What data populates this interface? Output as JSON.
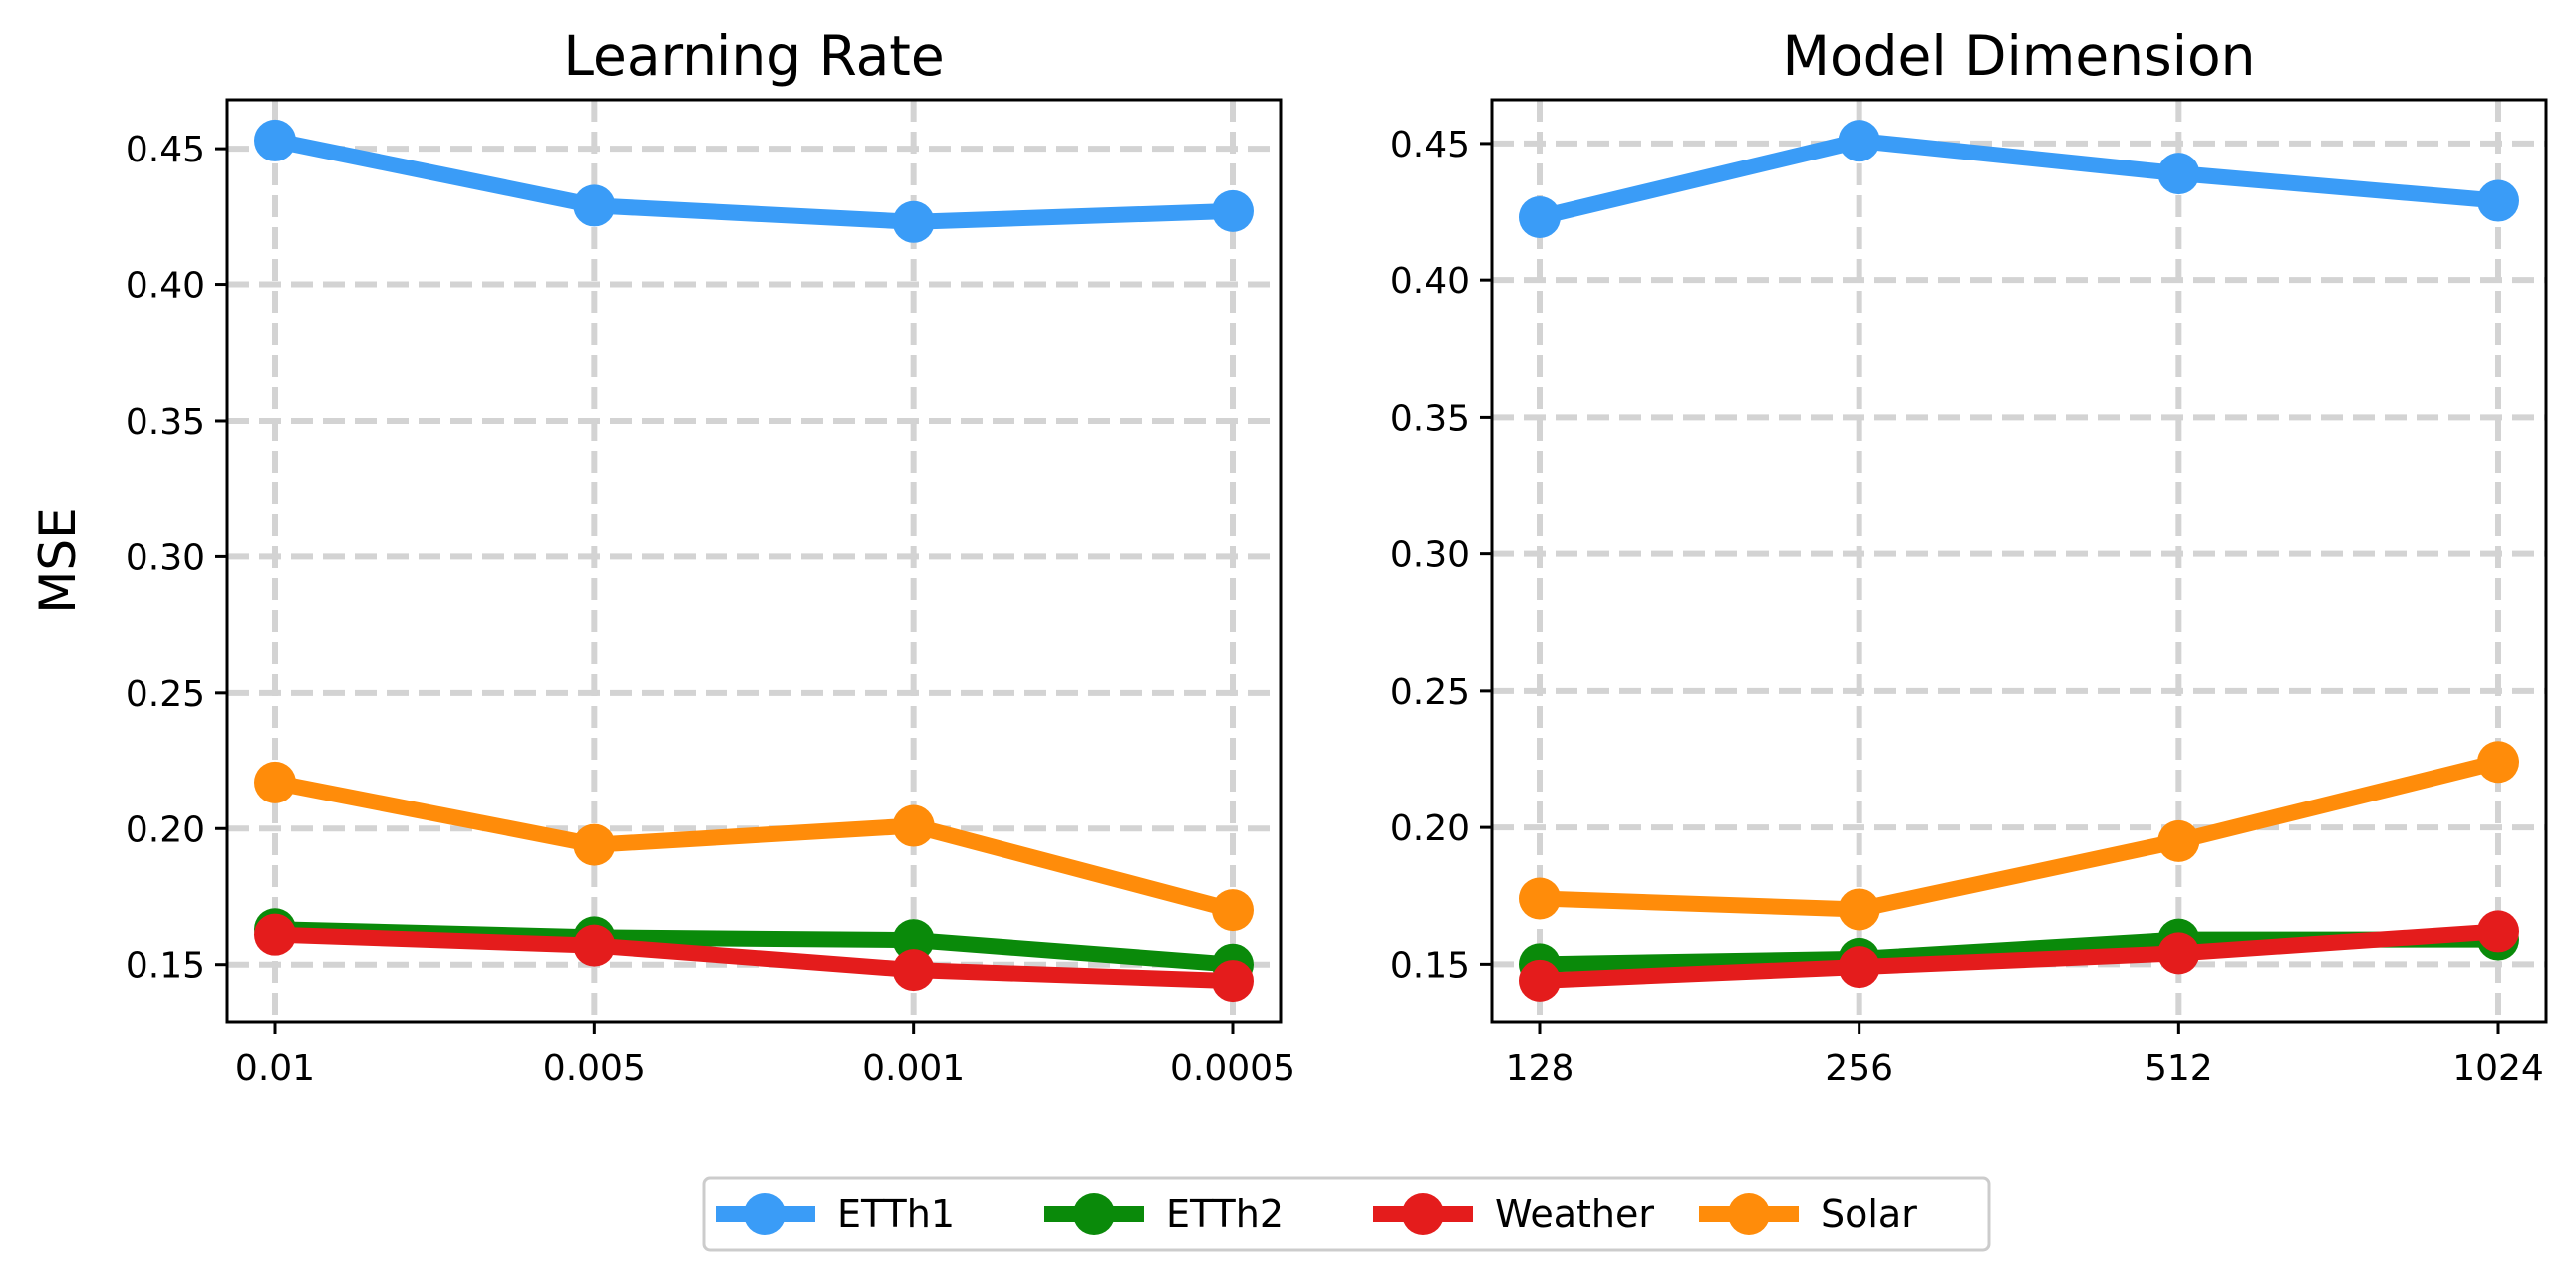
{
  "chart_data": [
    {
      "type": "line",
      "title": "Learning Rate",
      "xlabel": "",
      "ylabel": "MSE",
      "categories": [
        "0.01",
        "0.005",
        "0.001",
        "0.0005"
      ],
      "ylim": [
        0.129,
        0.468
      ],
      "yticks": [
        "0.15",
        "0.20",
        "0.25",
        "0.30",
        "0.35",
        "0.40",
        "0.45"
      ],
      "grid": true,
      "series": [
        {
          "name": "ETTh1",
          "color": "#3a9cf7",
          "values": [
            0.453,
            0.429,
            0.423,
            0.427
          ]
        },
        {
          "name": "Solar",
          "color": "#ff8c0a",
          "values": [
            0.217,
            0.194,
            0.201,
            0.17
          ]
        },
        {
          "name": "ETTh2",
          "color": "#0a8a0a",
          "values": [
            0.163,
            0.16,
            0.159,
            0.15
          ]
        },
        {
          "name": "Weather",
          "color": "#e41c1c",
          "values": [
            0.161,
            0.157,
            0.148,
            0.144
          ]
        }
      ]
    },
    {
      "type": "line",
      "title": "Model Dimension",
      "xlabel": "",
      "ylabel": "",
      "categories": [
        "128",
        "256",
        "512",
        "1024"
      ],
      "ylim": [
        0.129,
        0.466
      ],
      "yticks": [
        "0.15",
        "0.20",
        "0.25",
        "0.30",
        "0.35",
        "0.40",
        "0.45"
      ],
      "grid": true,
      "series": [
        {
          "name": "ETTh1",
          "color": "#3a9cf7",
          "values": [
            0.423,
            0.451,
            0.439,
            0.429
          ]
        },
        {
          "name": "Solar",
          "color": "#ff8c0a",
          "values": [
            0.174,
            0.17,
            0.195,
            0.224
          ]
        },
        {
          "name": "ETTh2",
          "color": "#0a8a0a",
          "values": [
            0.15,
            0.152,
            0.159,
            0.159
          ]
        },
        {
          "name": "Weather",
          "color": "#e41c1c",
          "values": [
            0.144,
            0.149,
            0.154,
            0.162
          ]
        }
      ]
    }
  ],
  "legend": {
    "placement": "bottom-center",
    "entries": [
      {
        "name": "ETTh1",
        "color": "#3a9cf7"
      },
      {
        "name": "ETTh2",
        "color": "#0a8a0a"
      },
      {
        "name": "Weather",
        "color": "#e41c1c"
      },
      {
        "name": "Solar",
        "color": "#ff8c0a"
      }
    ]
  },
  "colors": {
    "grid": "#d3d3d3",
    "axes": "#000000"
  }
}
